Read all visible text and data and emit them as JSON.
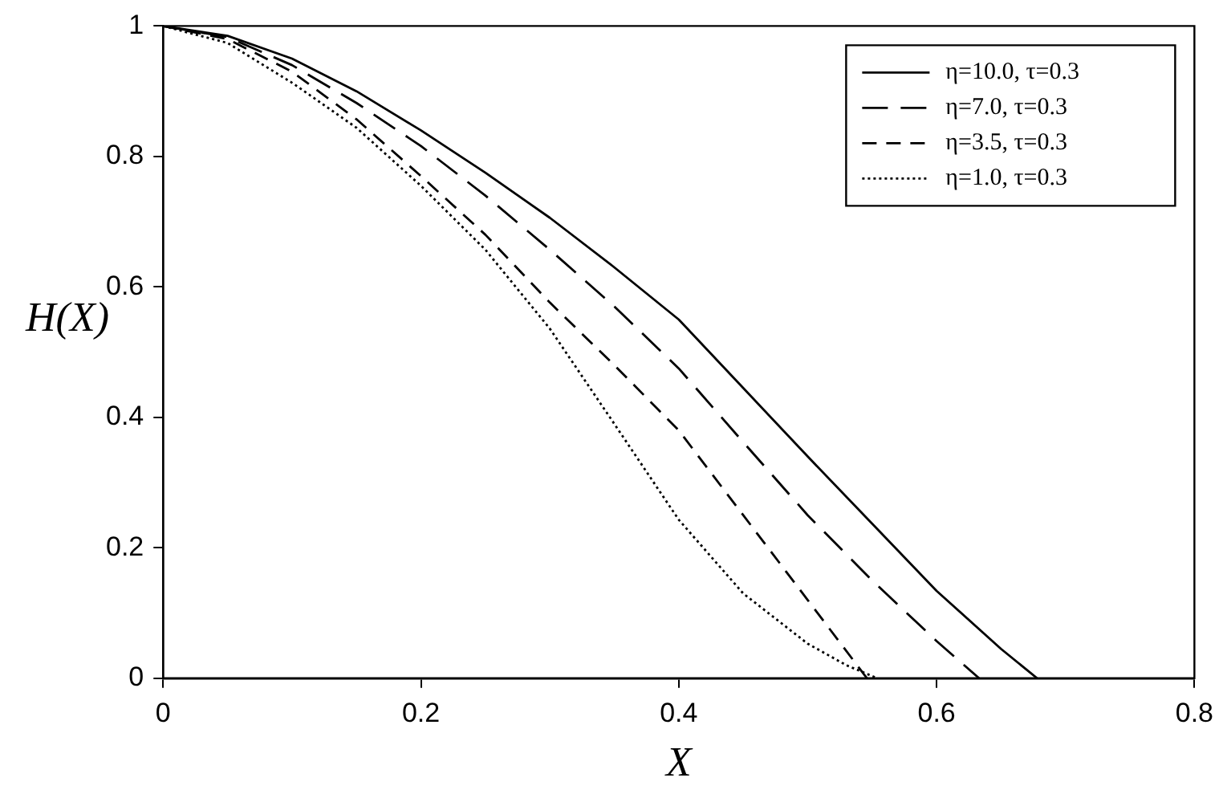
{
  "chart_data": {
    "type": "line",
    "xlabel": "X",
    "ylabel": "H(X)",
    "xlim": [
      0,
      0.8
    ],
    "xticks": [
      0,
      0.2,
      0.4,
      0.6,
      0.8
    ],
    "ylim": [
      0,
      1
    ],
    "yticks": [
      0,
      0.2,
      0.4,
      0.6,
      0.8,
      1
    ],
    "grid": false,
    "legend": "top right",
    "marker": "none",
    "series": [
      {
        "name": "η=10.0, τ=0.3",
        "color": "#000000",
        "line_style": "solid",
        "x": [
          0,
          0.05,
          0.1,
          0.15,
          0.2,
          0.25,
          0.3,
          0.35,
          0.4,
          0.45,
          0.5,
          0.55,
          0.6,
          0.65,
          0.678
        ],
        "values": [
          1,
          0.985,
          0.95,
          0.9,
          0.84,
          0.775,
          0.706,
          0.63,
          0.55,
          0.445,
          0.34,
          0.237,
          0.134,
          0.045,
          0
        ]
      },
      {
        "name": "η=7.0, τ=0.3",
        "color": "#000000",
        "line_style": "dashed",
        "x": [
          0,
          0.05,
          0.1,
          0.15,
          0.2,
          0.25,
          0.3,
          0.35,
          0.4,
          0.45,
          0.5,
          0.55,
          0.6,
          0.633
        ],
        "values": [
          1,
          0.983,
          0.94,
          0.882,
          0.816,
          0.74,
          0.657,
          0.57,
          0.475,
          0.362,
          0.25,
          0.15,
          0.057,
          0
        ]
      },
      {
        "name": "η=3.5, τ=0.3",
        "color": "#000000",
        "line_style": "dashed",
        "x": [
          0,
          0.05,
          0.1,
          0.15,
          0.2,
          0.25,
          0.3,
          0.35,
          0.4,
          0.45,
          0.5,
          0.546
        ],
        "values": [
          1,
          0.98,
          0.93,
          0.857,
          0.77,
          0.68,
          0.576,
          0.48,
          0.38,
          0.25,
          0.12,
          0
        ]
      },
      {
        "name": "η=1.0, τ=0.3",
        "color": "#000000",
        "line_style": "dotted",
        "x": [
          0,
          0.05,
          0.1,
          0.15,
          0.2,
          0.25,
          0.3,
          0.35,
          0.4,
          0.45,
          0.5,
          0.53,
          0.554
        ],
        "values": [
          1,
          0.974,
          0.913,
          0.844,
          0.755,
          0.657,
          0.536,
          0.39,
          0.243,
          0.13,
          0.053,
          0.02,
          0
        ]
      }
    ]
  }
}
